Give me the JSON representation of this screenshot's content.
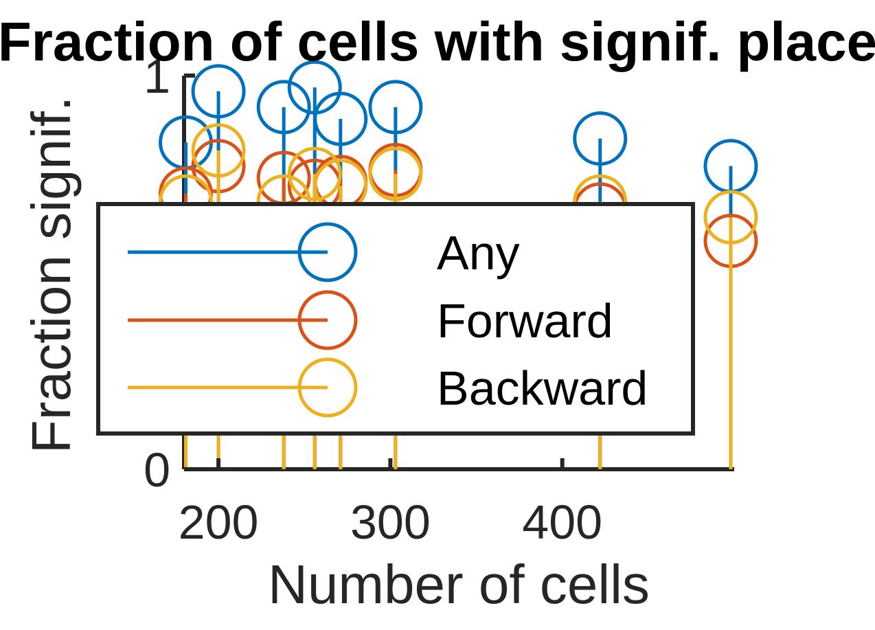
{
  "chart_data": {
    "type": "stem",
    "title": "Fraction of cells with signif. place",
    "xlabel": "Number of cells",
    "ylabel": "Fraction signif.",
    "xlim": [
      180,
      500
    ],
    "ylim": [
      0,
      1
    ],
    "xticks": [
      200,
      300,
      400
    ],
    "yticks": [
      0,
      1
    ],
    "grid": false,
    "legend_position": "left-center",
    "x": [
      181,
      200,
      238,
      256,
      271,
      303,
      422,
      498
    ],
    "series": [
      {
        "name": "Any",
        "color": "#0072BD",
        "values": [
          0.83,
          0.96,
          0.92,
          0.97,
          0.89,
          0.92,
          0.84,
          0.77
        ]
      },
      {
        "name": "Forward",
        "color": "#D95319",
        "values": [
          0.7,
          0.77,
          0.74,
          0.72,
          0.73,
          0.76,
          0.66,
          0.58
        ]
      },
      {
        "name": "Backward",
        "color": "#EDB120",
        "values": [
          0.68,
          0.81,
          0.68,
          0.75,
          0.72,
          0.75,
          0.68,
          0.64
        ]
      }
    ]
  }
}
